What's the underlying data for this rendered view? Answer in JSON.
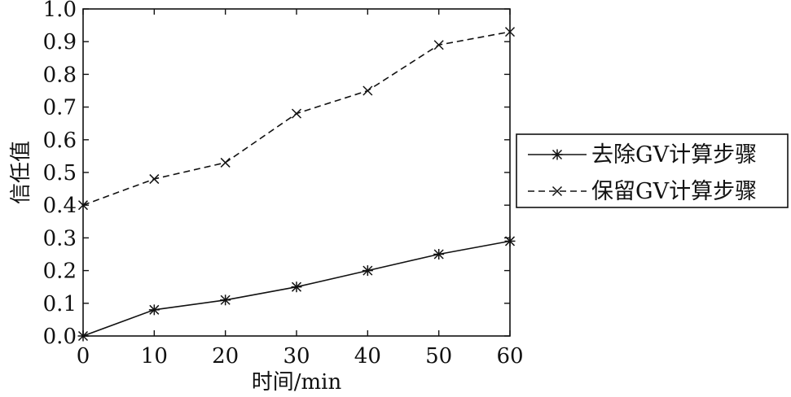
{
  "chart_data": {
    "type": "line",
    "title": "",
    "xlabel": "时间/min",
    "ylabel": "信任值",
    "xlim": [
      0,
      60
    ],
    "ylim": [
      0,
      1
    ],
    "x": [
      0,
      10,
      20,
      30,
      40,
      50,
      60
    ],
    "xticks": [
      "0",
      "10",
      "20",
      "30",
      "40",
      "50",
      "60"
    ],
    "yticks": [
      "0.0",
      "0.1",
      "0.2",
      "0.3",
      "0.4",
      "0.5",
      "0.6",
      "0.7",
      "0.8",
      "0.9",
      "1.0"
    ],
    "grid": false,
    "legend_position": "right",
    "series": [
      {
        "name": "去除GV计算步骤",
        "values": [
          0.0,
          0.08,
          0.11,
          0.15,
          0.2,
          0.25,
          0.29
        ],
        "line_style": "solid",
        "marker": "asterisk",
        "color": "#111111"
      },
      {
        "name": "保留GV计算步骤",
        "values": [
          0.4,
          0.48,
          0.53,
          0.68,
          0.75,
          0.89,
          0.93
        ],
        "line_style": "dashed",
        "marker": "x",
        "color": "#111111"
      }
    ]
  }
}
